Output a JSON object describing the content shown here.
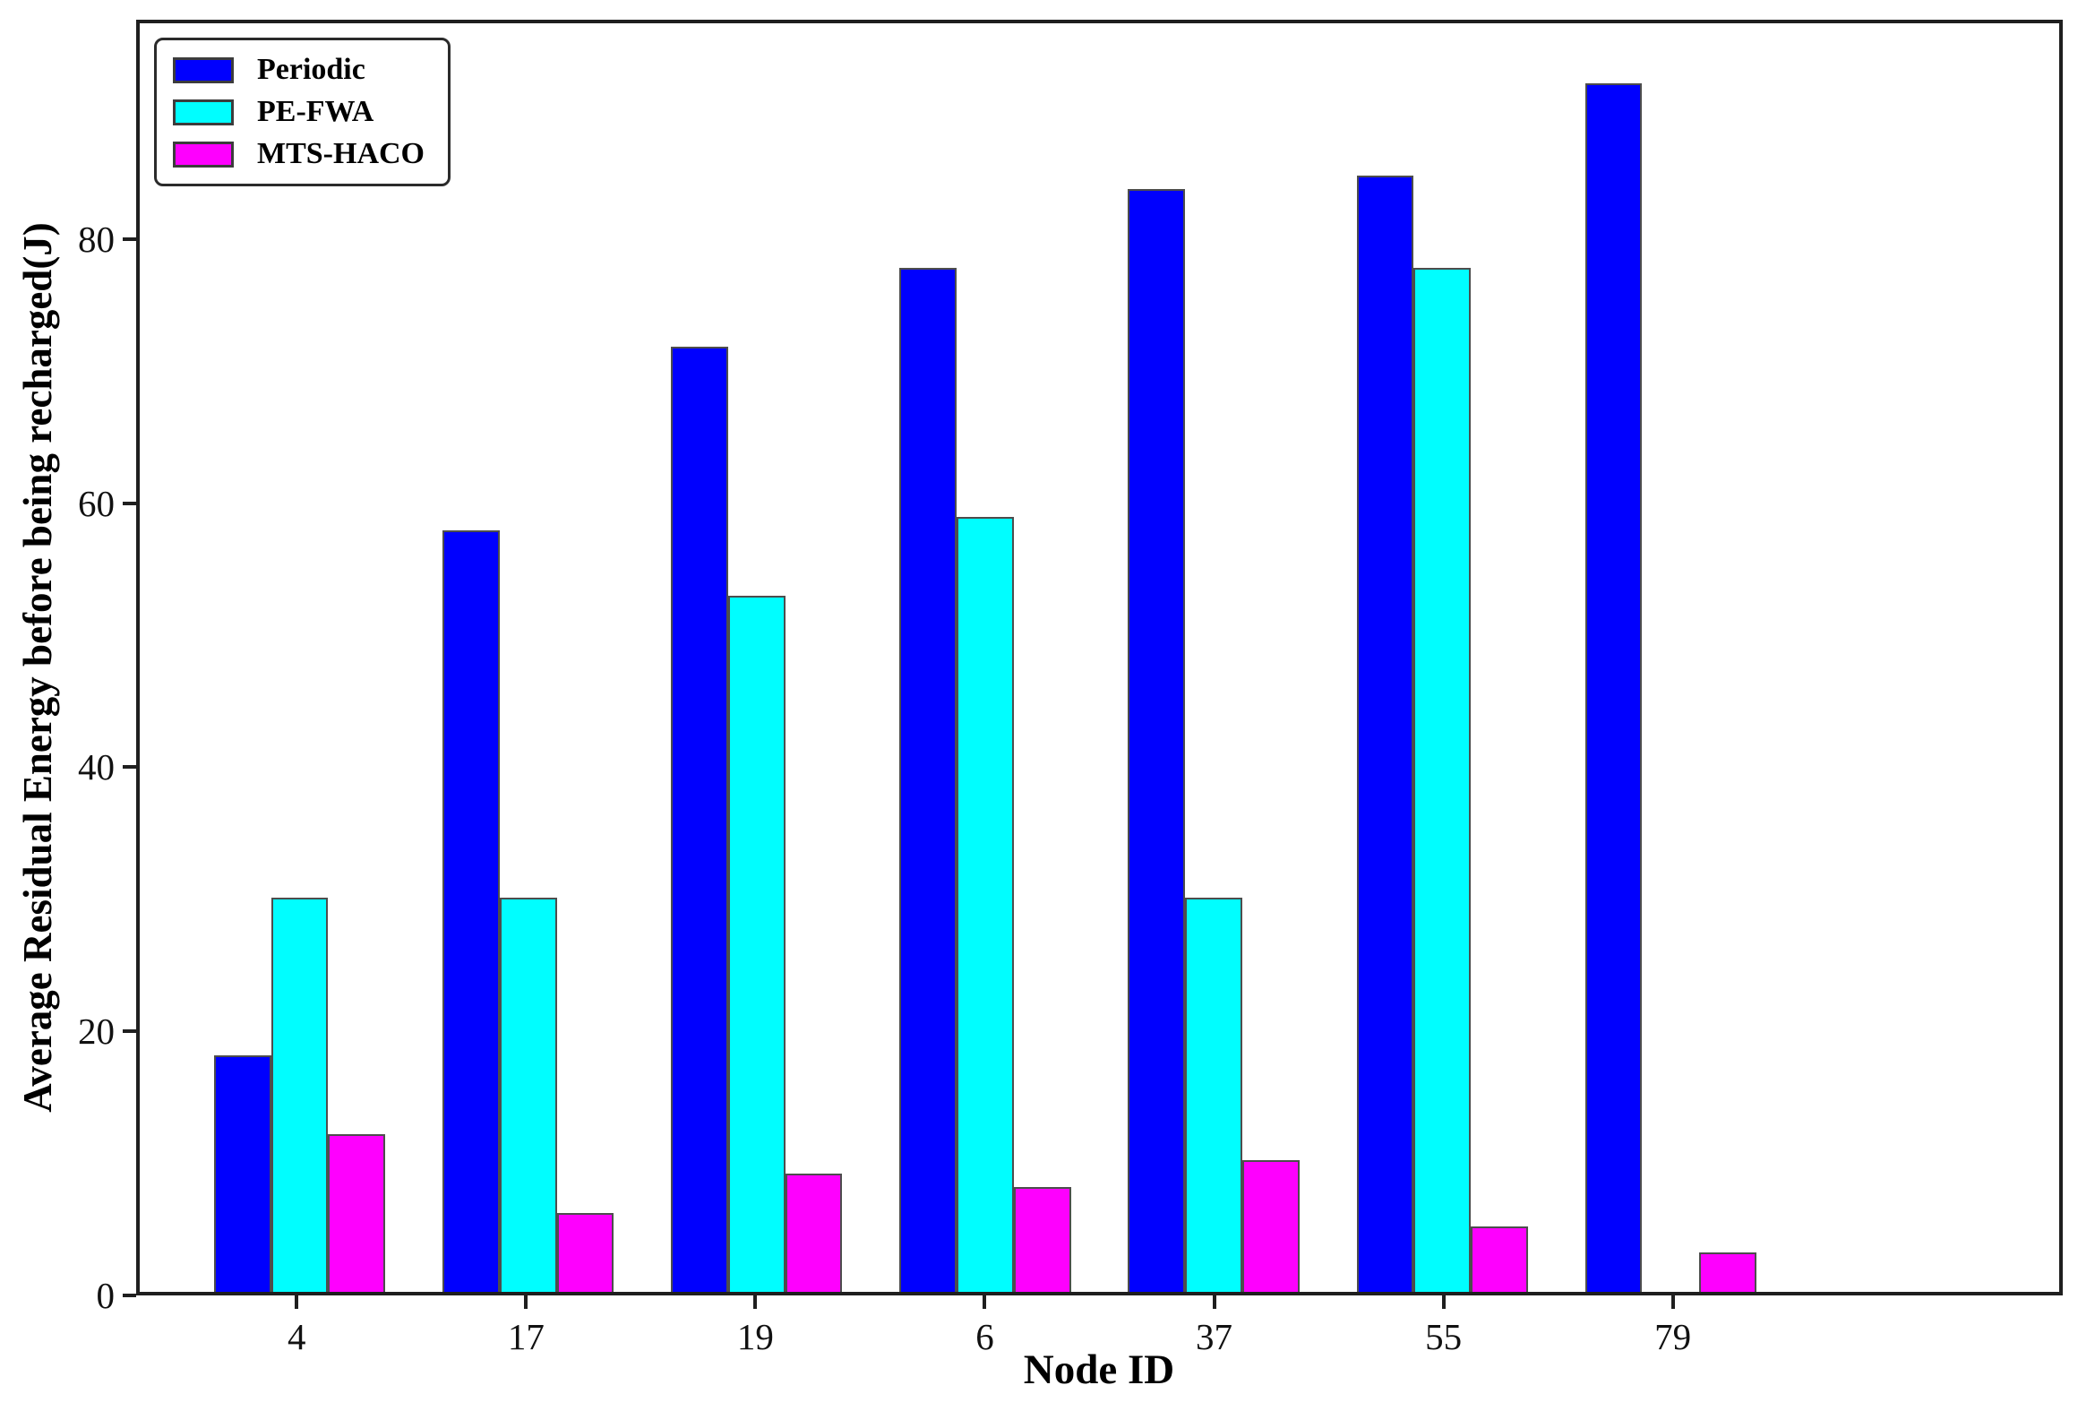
{
  "chart_data": {
    "type": "bar",
    "title": "",
    "xlabel": "Node ID",
    "ylabel": "Average Residual Energy before being recharged(J)",
    "categories": [
      "4",
      "17",
      "19",
      "6",
      "37",
      "55",
      "79"
    ],
    "series": [
      {
        "name": "Periodic",
        "color": "#0000fe",
        "values": [
          18,
          58,
          72,
          78,
          84,
          85,
          92
        ]
      },
      {
        "name": "PE-FWA",
        "color": "#00feff",
        "values": [
          30,
          30,
          53,
          59,
          30,
          78,
          0
        ]
      },
      {
        "name": "MTS-HACO",
        "color": "#fe00fe",
        "values": [
          12,
          6,
          9,
          8,
          10,
          5,
          3
        ]
      }
    ],
    "yticks": [
      0,
      20,
      40,
      60,
      80
    ],
    "ylim": [
      0,
      96.6
    ],
    "bar_width_data_units": 0.25,
    "bar_edge_color": "#4d4d4d",
    "spine_color": "#1f1f1f",
    "grid": false,
    "legend_position": "upper-left",
    "plot_background": "#ffffff"
  }
}
